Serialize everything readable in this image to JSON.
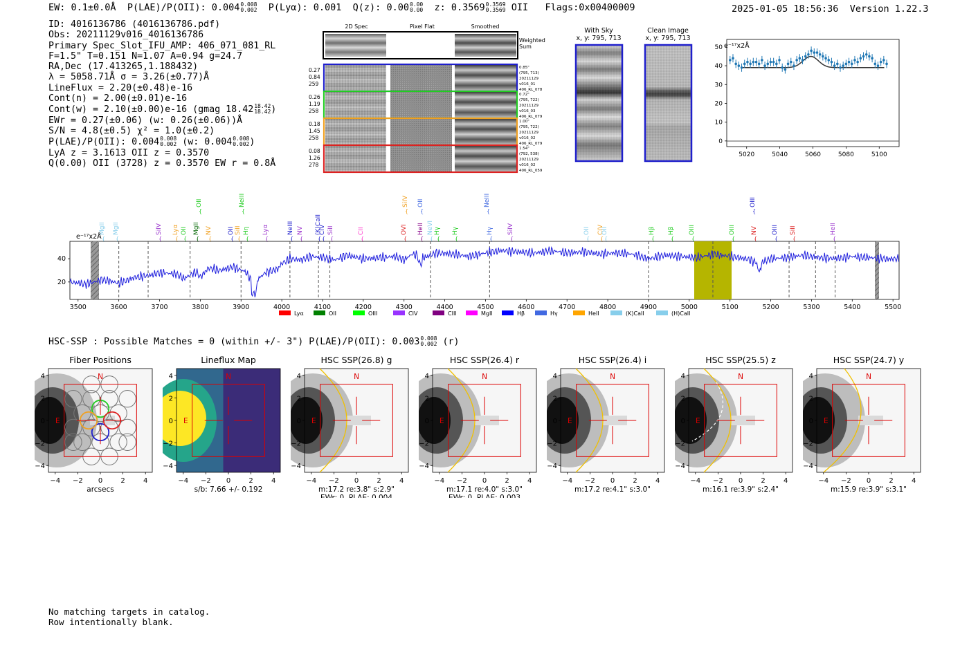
{
  "header": {
    "ew": "EW: 0.1±0.0Å",
    "plae_label": "P(LAE)/P(OII): 0.004",
    "plae_hi": "0.008",
    "plae_lo": "0.002",
    "plya": "P(Lyα): 0.001",
    "qz_label": "Q(z): 0.00",
    "qz_hi": "0.00",
    "qz_lo": "0.00",
    "z_label": "z: 0.3569",
    "z_hi": "0.3569",
    "z_lo": "0.3569",
    "z_line": "OII",
    "flags": "Flags:0x00400009",
    "timestamp": "2025-01-05 18:56:36",
    "version": "Version 1.22.3"
  },
  "info": {
    "id": "ID: 4016136786 (4016136786.pdf)",
    "obs": "Obs: 20211129v016_4016136786",
    "primary": "Primary Spec_Slot_IFU_AMP: 406_071_081_RL",
    "fiber": "F=1.5\"  T=0.151  N=1.07  A=0.94  g=24.7",
    "radec": "RA,Dec (17.413265,1.188432)",
    "lambda": "λ = 5058.71Å  σ = 3.26(±0.77)Å",
    "lineflux": "LineFlux = 2.20(±0.48)e-16",
    "cont_n": "Cont(n) = 2.00(±0.01)e-16",
    "cont_w": "Cont(w) = 2.10(±0.00)e-16 (gmag 18.42",
    "gmag_hi": "18.42",
    "gmag_lo": "18.42",
    "ewr": "EWr = 0.27(±0.06) (w: 0.26(±0.06))Å",
    "sn": "S/N = 4.8(±0.5)  χ² = 1.0(±0.2)",
    "plae": "P(LAE)/P(OII): 0.004",
    "plae_hi": "0.008",
    "plae_lo": "0.002",
    "plae_w": "(w: 0.004",
    "plae_w_hi": "0.008",
    "plae_w_lo": "0.002",
    "lya_oii": "LyA z = 3.1613  OII z = 0.3570",
    "q": "Q(0.00) OII (3728) z = 0.3570  EW r = 0.8Å"
  },
  "spec2d": {
    "col_headers": [
      "2D Spec",
      "Pixel Flat",
      "Smoothed"
    ],
    "weighted_sum": [
      "Weighted",
      "Sum"
    ],
    "rows": [
      {
        "stats": [
          "0.27",
          "0.84",
          "259"
        ],
        "notes": [
          "0.85\"",
          "(795, 713)",
          "20211129",
          "v016_01",
          "406_RL_078"
        ],
        "color": "#1f1fcc"
      },
      {
        "stats": [
          "0.26",
          "1.19",
          "258"
        ],
        "notes": [
          "0.72\"",
          "(795, 722)",
          "20211129",
          "v016_03",
          "406_RL_079"
        ],
        "color": "#22cc22"
      },
      {
        "stats": [
          "0.18",
          "1.45",
          "258"
        ],
        "notes": [
          "1.00\"",
          "(795, 722)",
          "20211129",
          "v016_02",
          "406_RL_079"
        ],
        "color": "#f0a020"
      },
      {
        "stats": [
          "0.08",
          "1.26",
          "278"
        ],
        "notes": [
          "1.54\"",
          "(792, 538)",
          "20211129",
          "v016_02",
          "406_RL_059"
        ],
        "color": "#dd2222"
      }
    ]
  },
  "sky": {
    "with_sky": [
      "With Sky",
      "x, y: 795, 713"
    ],
    "clean": [
      "Clean Image",
      "x, y: 795, 713"
    ]
  },
  "zoom_chart": {
    "unit": "e⁻¹⁷x2Å",
    "y_ticks": [
      "50",
      "40",
      "30",
      "20",
      "10",
      "0"
    ],
    "x_ticks": [
      "5020",
      "5040",
      "5060",
      "5080",
      "5100"
    ]
  },
  "full_spectrum": {
    "unit": "e⁻¹⁷x2Å",
    "y_ticks": [
      "40",
      "20"
    ],
    "x_ticks": [
      "3500",
      "3600",
      "3700",
      "3800",
      "3900",
      "4000",
      "4100",
      "4200",
      "4300",
      "4400",
      "4500",
      "4600",
      "4700",
      "4800",
      "4900",
      "5000",
      "5100",
      "5200",
      "5300",
      "5400",
      "5500"
    ],
    "line_labels": [
      {
        "text": "MgII",
        "color": "#87ceeb",
        "row": 1
      },
      {
        "text": "MgII",
        "color": "#87ceeb",
        "row": 1
      },
      {
        "text": "SiIV",
        "color": "#9933cc",
        "row": 1
      },
      {
        "text": "OII",
        "color": "#22cc22",
        "row": 1
      },
      {
        "text": "Lyα",
        "color": "#f0a020",
        "row": 1
      },
      {
        "text": "OII",
        "color": "#22cc22",
        "row": 0
      },
      {
        "text": "MgII",
        "color": "#006600",
        "row": 1
      },
      {
        "text": "NV",
        "color": "#f0a020",
        "row": 1
      },
      {
        "text": "OII",
        "color": "#1f1fcc",
        "row": 1
      },
      {
        "text": "NeIII",
        "color": "#22cc22",
        "row": 0
      },
      {
        "text": "SiII",
        "color": "#f0a020",
        "row": 1
      },
      {
        "text": "Hη",
        "color": "#22cc22",
        "row": 1
      },
      {
        "text": "Lyα",
        "color": "#9933cc",
        "row": 1
      },
      {
        "text": "NeIII",
        "color": "#1f1fcc",
        "row": 1
      },
      {
        "text": "NV",
        "color": "#9933cc",
        "row": 1
      },
      {
        "text": "(K)CaII",
        "color": "#1f1fcc",
        "row": 1
      },
      {
        "text": "CIV",
        "color": "#1f1fcc",
        "row": 1
      },
      {
        "text": "SiII",
        "color": "#9933cc",
        "row": 1
      },
      {
        "text": "CII",
        "color": "#ff33cc",
        "row": 1
      },
      {
        "text": "SiIV",
        "color": "#f0a020",
        "row": 0
      },
      {
        "text": "OVI",
        "color": "#dd2222",
        "row": 1
      },
      {
        "text": "OII",
        "color": "#4169e1",
        "row": 0
      },
      {
        "text": "HeII",
        "color": "#880088",
        "row": 1
      },
      {
        "text": "NeVI",
        "color": "#87ceeb",
        "row": 1
      },
      {
        "text": "Hγ",
        "color": "#22cc22",
        "row": 1
      },
      {
        "text": "Hγ",
        "color": "#22cc22",
        "row": 1
      },
      {
        "text": "NeIII",
        "color": "#4169e1",
        "row": 0
      },
      {
        "text": "Hγ",
        "color": "#4169e1",
        "row": 1
      },
      {
        "text": "SiIV",
        "color": "#9933cc",
        "row": 1
      },
      {
        "text": "OII",
        "color": "#87ceeb",
        "row": 1
      },
      {
        "text": "CIV",
        "color": "#f0a020",
        "row": 1
      },
      {
        "text": "OII",
        "color": "#87ceeb",
        "row": 1
      },
      {
        "text": "Hβ",
        "color": "#22cc22",
        "row": 1
      },
      {
        "text": "Hβ",
        "color": "#22cc22",
        "row": 1
      },
      {
        "text": "OIII",
        "color": "#22cc22",
        "row": 1
      },
      {
        "text": "OIII",
        "color": "#22cc22",
        "row": 1
      },
      {
        "text": "NV",
        "color": "#dd2222",
        "row": 1
      },
      {
        "text": "OIII",
        "color": "#1f1fcc",
        "row": 0
      },
      {
        "text": "OIII",
        "color": "#1f1fcc",
        "row": 1
      },
      {
        "text": "SiII",
        "color": "#dd2222",
        "row": 1
      },
      {
        "text": "HeII",
        "color": "#9933cc",
        "row": 1
      }
    ],
    "legend": [
      {
        "label": "Lyα",
        "color": "#ff0000"
      },
      {
        "label": "OII",
        "color": "#008000"
      },
      {
        "label": "OIII",
        "color": "#00ff00"
      },
      {
        "label": "CIV",
        "color": "#9933ff"
      },
      {
        "label": "CIII",
        "color": "#800080"
      },
      {
        "label": "MgII",
        "color": "#ff00ff"
      },
      {
        "label": "Hβ",
        "color": "#0000ff"
      },
      {
        "label": "Hγ",
        "color": "#4169e1"
      },
      {
        "label": "HeII",
        "color": "#ffa500"
      },
      {
        "label": "(K)CaII",
        "color": "#87ceeb"
      },
      {
        "label": "(H)CaII",
        "color": "#87ceeb"
      }
    ]
  },
  "hsc": {
    "summary": "HSC-SSP : Possible Matches = 0 (within +/- 3\")  P(LAE)/P(OII): 0.003",
    "summary_hi": "0.008",
    "summary_lo": "0.002",
    "summary_band": "(r)",
    "panels": [
      {
        "title": "Fiber Positions",
        "caption1": "arcsecs",
        "caption2": "",
        "kind": "fiber"
      },
      {
        "title": "Lineflux Map",
        "caption1": "s/b: 7.66 +/- 0.192",
        "caption2": "",
        "kind": "lineflux"
      },
      {
        "title": "HSC SSP(26.8) g",
        "caption1": "m:17.2  re:3.8\"  s:2.9\"",
        "caption2": "EWr: 0, PLAE: 0.004",
        "kind": "hsc"
      },
      {
        "title": "HSC SSP(26.4) r",
        "caption1": "m:17.1  re:4.0\"  s:3.0\"",
        "caption2": "EWr: 0, PLAE: 0.003",
        "kind": "hsc"
      },
      {
        "title": "HSC SSP(26.4) i",
        "caption1": "m:17.2  re:4.1\"  s:3.0\"",
        "caption2": "",
        "kind": "hsc"
      },
      {
        "title": "HSC SSP(25.5) z",
        "caption1": "m:16.1  re:3.9\"  s:2.4\"",
        "caption2": "",
        "kind": "hsc"
      },
      {
        "title": "HSC SSP(24.7) y",
        "caption1": "m:15.9  re:3.9\"  s:3.1\"",
        "caption2": "",
        "kind": "hsc"
      }
    ],
    "axis_ticks": [
      "4",
      "2",
      "0",
      "−2",
      "−4"
    ],
    "x_ticks": [
      "−4",
      "−2",
      "0",
      "2",
      "4"
    ],
    "north": "N",
    "east": "E"
  },
  "footer": {
    "line1": "No matching targets in catalog.",
    "line2": "Row intentionally blank."
  }
}
